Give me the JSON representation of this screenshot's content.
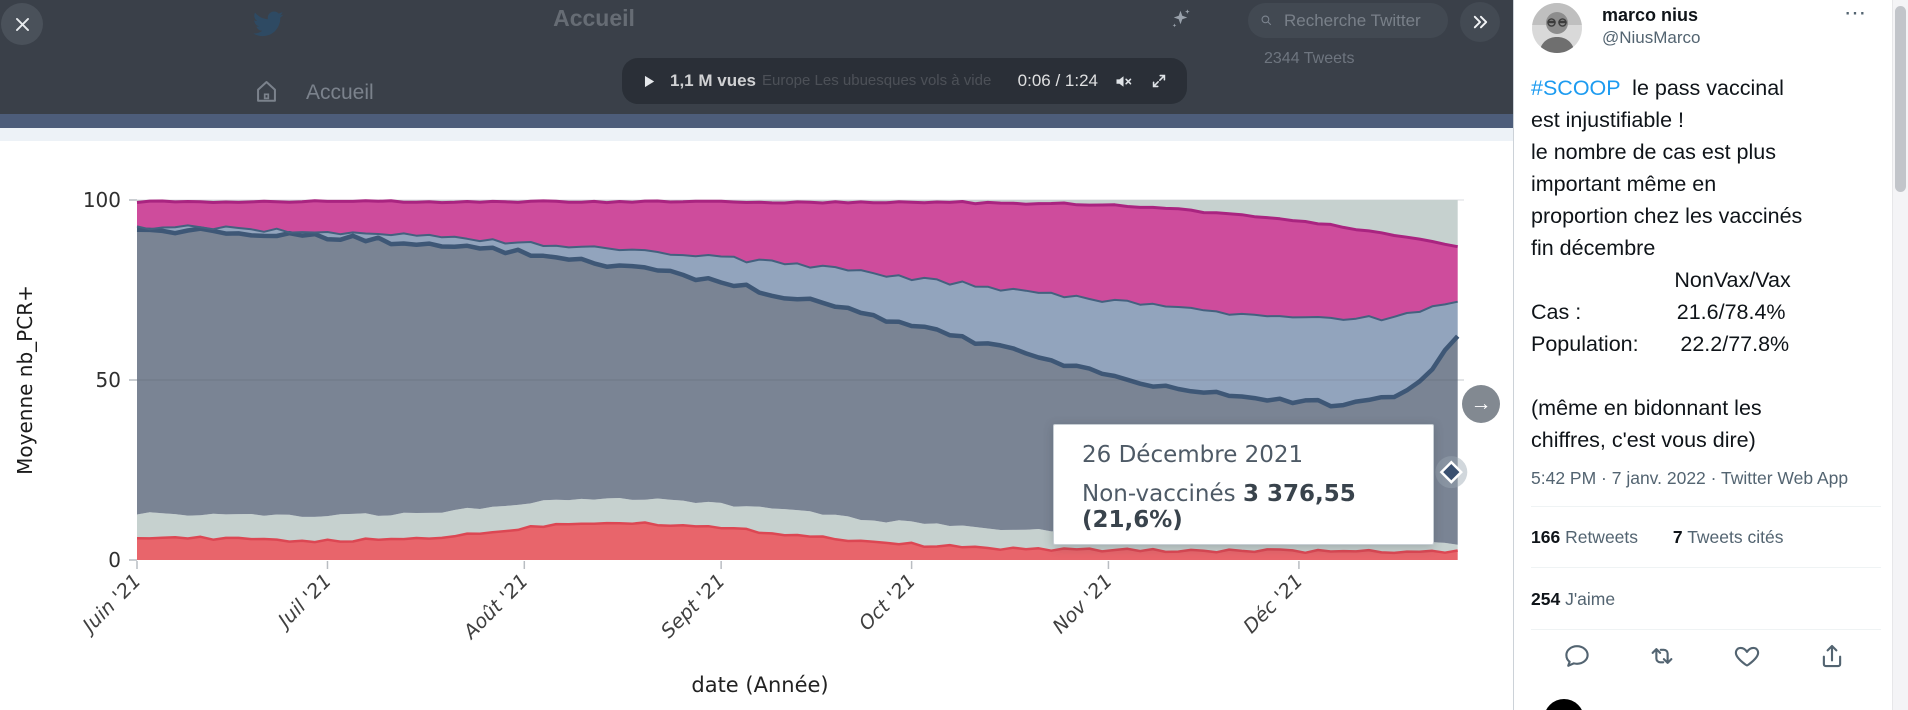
{
  "lightbox": {
    "close_glyph": "✕",
    "next_glyph": "→"
  },
  "header": {
    "title": "Accueil",
    "home_label": "Accueil",
    "search_placeholder": "Recherche Twitter",
    "tweets_count": "2344 Tweets"
  },
  "video": {
    "views": "1,1 M vues",
    "caption": "Europe Les ubuesques vols à vide",
    "time": "0:06 / 1:24"
  },
  "chart_data": {
    "type": "area",
    "stacked": true,
    "units": "percent share 0-100",
    "xlabel": "date (Année)",
    "ylabel": "Moyenne nb_PCR+",
    "ylim": [
      0,
      100
    ],
    "x_span_days": [
      0,
      209
    ],
    "yticks": [
      {
        "v": 0,
        "label": "0"
      },
      {
        "v": 50,
        "label": "50"
      },
      {
        "v": 100,
        "label": "100"
      }
    ],
    "xticks": [
      {
        "day": 0,
        "label": "Juin '21"
      },
      {
        "day": 30,
        "label": "Juil '21"
      },
      {
        "day": 61,
        "label": "Août '21"
      },
      {
        "day": 92,
        "label": "Sept '21"
      },
      {
        "day": 122,
        "label": "Oct '21"
      },
      {
        "day": 153,
        "label": "Nov '21"
      },
      {
        "day": 183,
        "label": "Déc '21"
      }
    ],
    "grid": [
      50,
      100
    ],
    "boundaries": [
      {
        "name": "red-band-top",
        "fill": "#e8656b",
        "edge": "#dc4753",
        "edge_w": 2.5,
        "amp": 0.45,
        "points": [
          [
            0,
            6.5
          ],
          [
            15,
            5.8
          ],
          [
            30,
            5.2
          ],
          [
            45,
            6
          ],
          [
            55,
            7.5
          ],
          [
            65,
            9.8
          ],
          [
            75,
            10.6
          ],
          [
            85,
            9.8
          ],
          [
            95,
            8.4
          ],
          [
            105,
            6.8
          ],
          [
            115,
            5.2
          ],
          [
            125,
            4
          ],
          [
            135,
            3.2
          ],
          [
            150,
            2.8
          ],
          [
            165,
            2.6
          ],
          [
            180,
            2.5
          ],
          [
            195,
            2.3
          ],
          [
            209,
            2.2
          ]
        ]
      },
      {
        "name": "lower-gray-band-top",
        "fill": "#c6d1cf",
        "amp": 0.5,
        "points": [
          [
            0,
            13
          ],
          [
            15,
            12.4
          ],
          [
            30,
            12.2
          ],
          [
            45,
            13.2
          ],
          [
            55,
            14.6
          ],
          [
            65,
            16.4
          ],
          [
            75,
            17.2
          ],
          [
            85,
            16.4
          ],
          [
            95,
            15
          ],
          [
            105,
            13.4
          ],
          [
            115,
            11.4
          ],
          [
            125,
            9.8
          ],
          [
            135,
            8.8
          ],
          [
            150,
            8.2
          ],
          [
            165,
            7.6
          ],
          [
            180,
            6.8
          ],
          [
            195,
            5.6
          ],
          [
            209,
            4.6
          ]
        ]
      },
      {
        "name": "nonvax-gray-top-navy-line",
        "fill": "#7a8494",
        "edge": "#3e5776",
        "edge_w": 4.5,
        "amp": 0.9,
        "points": [
          [
            0,
            92
          ],
          [
            10,
            91.4
          ],
          [
            20,
            90.6
          ],
          [
            30,
            89.6
          ],
          [
            40,
            88.6
          ],
          [
            50,
            87.2
          ],
          [
            60,
            85.4
          ],
          [
            70,
            83.2
          ],
          [
            80,
            80.6
          ],
          [
            90,
            77.6
          ],
          [
            100,
            74.2
          ],
          [
            110,
            70.4
          ],
          [
            120,
            66.2
          ],
          [
            130,
            61.8
          ],
          [
            140,
            57.2
          ],
          [
            150,
            52.8
          ],
          [
            160,
            49
          ],
          [
            170,
            46.2
          ],
          [
            180,
            44.4
          ],
          [
            188,
            43.6
          ],
          [
            195,
            44
          ],
          [
            200,
            47
          ],
          [
            204,
            53
          ],
          [
            207,
            60
          ],
          [
            209,
            64.5
          ]
        ]
      },
      {
        "name": "mid-blue-band-top",
        "fill": "#92a4bd",
        "edge": "#44617f",
        "edge_w": 2,
        "amp": 0.7,
        "points": [
          [
            0,
            92.6
          ],
          [
            20,
            91.8
          ],
          [
            40,
            90.4
          ],
          [
            60,
            88.4
          ],
          [
            80,
            85.8
          ],
          [
            100,
            82.6
          ],
          [
            120,
            78.8
          ],
          [
            140,
            74.6
          ],
          [
            160,
            70.6
          ],
          [
            175,
            68
          ],
          [
            188,
            66.8
          ],
          [
            196,
            67.2
          ],
          [
            202,
            69
          ],
          [
            206,
            71
          ],
          [
            209,
            72.5
          ]
        ]
      },
      {
        "name": "pink-band-top",
        "fill": "#ce4c9c",
        "edge": "#a92480",
        "edge_w": 3,
        "amp": 0.3,
        "points": [
          [
            0,
            99.6
          ],
          [
            60,
            99.5
          ],
          [
            100,
            99.4
          ],
          [
            130,
            99.3
          ],
          [
            145,
            99
          ],
          [
            155,
            98.4
          ],
          [
            165,
            97.2
          ],
          [
            175,
            95.6
          ],
          [
            185,
            93.6
          ],
          [
            193,
            91.8
          ],
          [
            200,
            89.8
          ],
          [
            205,
            88.2
          ],
          [
            209,
            86.8
          ]
        ]
      },
      {
        "name": "top-cap-band",
        "fill": "#c6d1cf"
      }
    ],
    "tooltip": {
      "date": "26 Décembre 2021",
      "series": "Non-vaccinés",
      "value": "3 376,55",
      "pct": "(21,6%)",
      "marker_day": 207,
      "marker_value": 24.4
    }
  },
  "tweet": {
    "name": "marco nius",
    "handle": "@NiusMarco",
    "more": "⋯",
    "hashtag": "#SCOOP",
    "body": "  le pass vaccinal\nest injustifiable !\nle nombre de cas est plus\nimportant même en\nproportion chez les vaccinés\nfin décembre\n                        NonVax/Vax\nCas :                21.6/78.4%\nPopulation:       22.2/77.8%\n\n(même en bidonnant les\nchiffres, c'est vous dire)",
    "timestamp": "5:42 PM · 7 janv. 2022 · Twitter Web App",
    "retweets": {
      "count": "166",
      "label": "Retweets"
    },
    "quotes": {
      "count": "7",
      "label": "Tweets cités"
    },
    "likes": {
      "count": "254",
      "label": "J'aime"
    }
  },
  "colors": {
    "accent_blue": "#1d9bf0",
    "overlay": "#3a4049",
    "blue_bar": "#4d5d7a",
    "navy_line": "#3e5776",
    "pink_band": "#ce4c9c",
    "red_band": "#e8656b",
    "gray_band": "#7a8494"
  }
}
